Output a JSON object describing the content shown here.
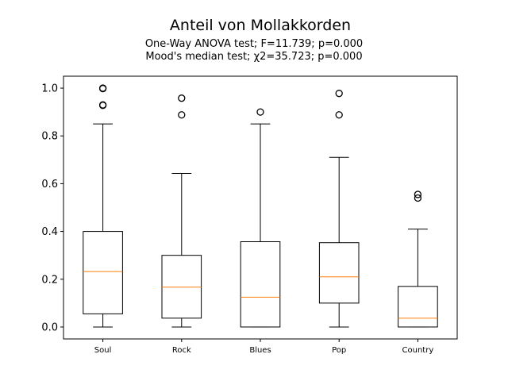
{
  "chart_data": {
    "type": "box",
    "title": "Anteil von Mollakkorden",
    "subtitle_lines": [
      "One-Way ANOVA test; F=11.739; p=0.000",
      "Mood's median test; χ2=35.723; p=0.000"
    ],
    "xlabel": "",
    "ylabel": "",
    "ylim": [
      -0.05,
      1.05
    ],
    "yticks": [
      0.0,
      0.2,
      0.4,
      0.6,
      0.8,
      1.0
    ],
    "ytick_labels": [
      "0.0",
      "0.2",
      "0.4",
      "0.6",
      "0.8",
      "1.0"
    ],
    "grid": false,
    "categories": [
      "Soul",
      "Rock",
      "Blues",
      "Pop",
      "Country"
    ],
    "boxes": [
      {
        "category": "Soul",
        "whisker_low": 0.0,
        "q1": 0.055,
        "median": 0.232,
        "q3": 0.4,
        "whisker_high": 0.85,
        "outliers": [
          1.0,
          0.998,
          0.93,
          0.928
        ]
      },
      {
        "category": "Rock",
        "whisker_low": 0.0,
        "q1": 0.037,
        "median": 0.167,
        "q3": 0.3,
        "whisker_high": 0.643,
        "outliers": [
          0.958,
          0.888
        ]
      },
      {
        "category": "Blues",
        "whisker_low": 0.0,
        "q1": 0.0,
        "median": 0.125,
        "q3": 0.357,
        "whisker_high": 0.85,
        "outliers": [
          0.9
        ]
      },
      {
        "category": "Pop",
        "whisker_low": 0.0,
        "q1": 0.1,
        "median": 0.21,
        "q3": 0.353,
        "whisker_high": 0.71,
        "outliers": [
          0.978,
          0.888
        ]
      },
      {
        "category": "Country",
        "whisker_low": 0.0,
        "q1": 0.0,
        "median": 0.037,
        "q3": 0.17,
        "whisker_high": 0.41,
        "outliers": [
          0.555,
          0.54
        ]
      }
    ],
    "colors": {
      "box": "#000000",
      "median": "#ff7f0e",
      "outlier": "#000000"
    }
  }
}
